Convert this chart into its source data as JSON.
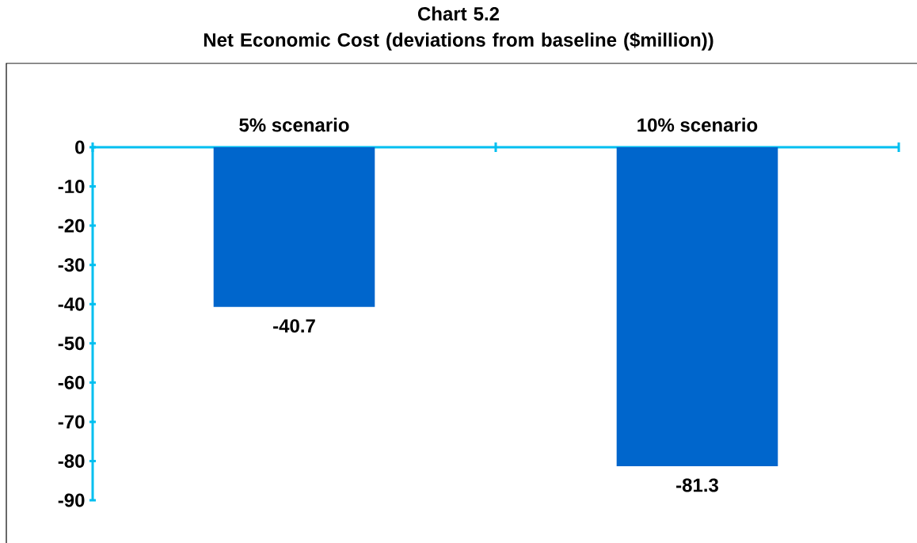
{
  "chart_data": {
    "type": "bar",
    "title": "Chart 5.2\nNet Economic Cost (deviations from baseline ($million))",
    "categories": [
      "5% scenario",
      "10% scenario"
    ],
    "values": [
      -40.7,
      -81.3
    ],
    "color": "#0066cc",
    "ylim": [
      -90,
      0
    ],
    "yticks": [
      -90,
      -80,
      -70,
      -60,
      -50,
      -40,
      -30,
      -20,
      -10,
      0
    ],
    "data_labels": true,
    "grid": false
  }
}
